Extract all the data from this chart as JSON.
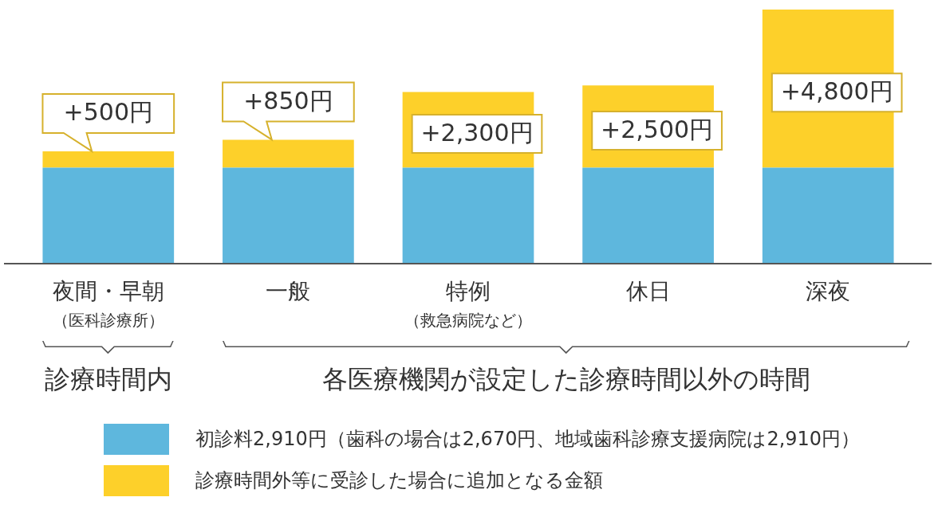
{
  "chart_data": {
    "type": "bar",
    "stacked": true,
    "legend": "bottom",
    "categories": [
      "夜間・早朝（医科診療所）",
      "一般",
      "特例（救急病院など）",
      "休日",
      "深夜"
    ],
    "series": [
      {
        "name": "初診料2,910円（歯科の場合は2,670円、地域歯科診療支援病院は2,910円）",
        "color": "#5eb7dd",
        "values": [
          2910,
          2910,
          2910,
          2910,
          2910
        ]
      },
      {
        "name": "診療時間外等に受診した場合に追加となる金額",
        "color": "#fdd02a",
        "values": [
          500,
          850,
          2300,
          2500,
          4800
        ],
        "value_labels": [
          "+500円",
          "+850円",
          "+2,300円",
          "+2,500円",
          "+4,800円"
        ]
      }
    ],
    "annotations": [
      "診療時間内",
      "各医療機関が設定した診療時間以外の時間"
    ]
  }
}
